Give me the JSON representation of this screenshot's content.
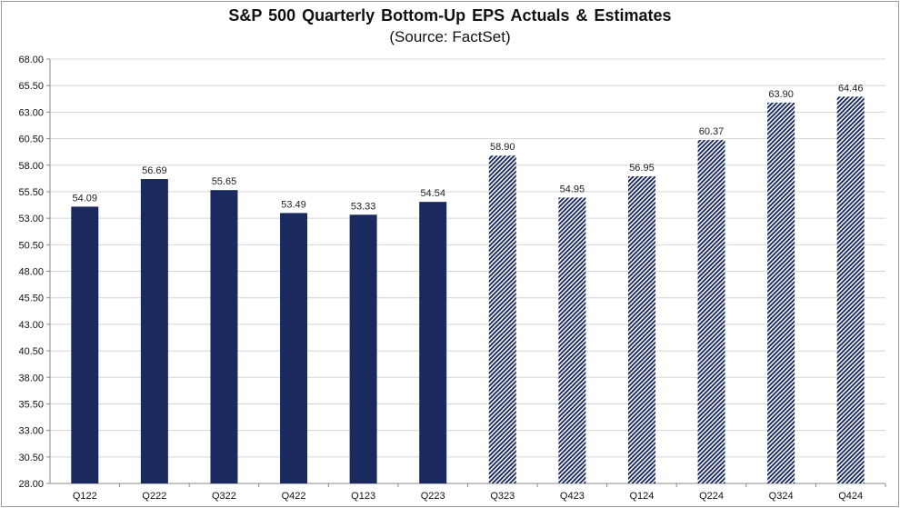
{
  "chart_data": {
    "type": "bar",
    "title": "S&P 500 Quarterly Bottom-Up EPS Actuals & Estimates",
    "subtitle": "(Source: FactSet)",
    "xlabel": "",
    "ylabel": "",
    "categories": [
      "Q122",
      "Q222",
      "Q322",
      "Q422",
      "Q123",
      "Q223",
      "Q323",
      "Q423",
      "Q124",
      "Q224",
      "Q324",
      "Q424"
    ],
    "values": [
      54.09,
      56.69,
      55.65,
      53.49,
      53.33,
      54.54,
      58.9,
      54.95,
      56.95,
      60.37,
      63.9,
      64.46
    ],
    "value_labels": [
      "54.09",
      "56.69",
      "55.65",
      "53.49",
      "53.33",
      "54.54",
      "58.90",
      "54.95",
      "56.95",
      "60.37",
      "63.90",
      "64.46"
    ],
    "bar_style": [
      "solid",
      "solid",
      "solid",
      "solid",
      "solid",
      "solid",
      "hatched",
      "hatched",
      "hatched",
      "hatched",
      "hatched",
      "hatched"
    ],
    "y_tick_labels": [
      "28.00",
      "30.50",
      "33.00",
      "35.50",
      "38.00",
      "40.50",
      "43.00",
      "45.50",
      "48.00",
      "50.50",
      "53.00",
      "55.50",
      "58.00",
      "60.50",
      "63.00",
      "65.50",
      "68.00"
    ],
    "ylim": [
      28,
      68
    ],
    "y_step": 2.5,
    "grid": true,
    "legend": "none",
    "colors": {
      "actual": "#1b2a5e",
      "estimate": "#1b2a5e",
      "grid": "#d4d4d4"
    }
  }
}
